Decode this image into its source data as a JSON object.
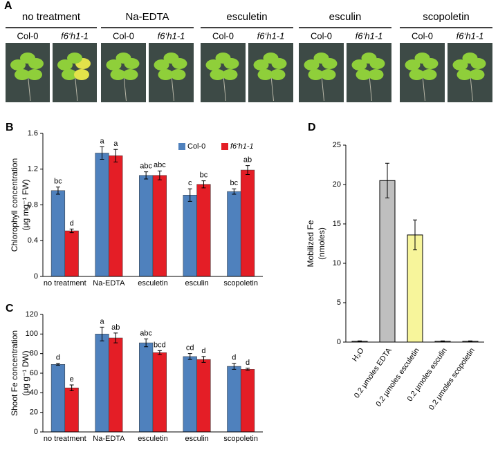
{
  "photo_panel": {
    "label": "A",
    "groups": [
      {
        "treatment": "no treatment",
        "genotypes": [
          "Col-0",
          "f6‘h1-1"
        ]
      },
      {
        "treatment": "Na-EDTA",
        "genotypes": [
          "Col-0",
          "f6‘h1-1"
        ]
      },
      {
        "treatment": "esculetin",
        "genotypes": [
          "Col-0",
          "f6‘h1-1"
        ]
      },
      {
        "treatment": "esculin",
        "genotypes": [
          "Col-0",
          "f6‘h1-1"
        ]
      },
      {
        "treatment": "scopoletin",
        "genotypes": [
          "Col-0",
          "f6‘h1-1"
        ]
      }
    ]
  },
  "chart_data": [
    {
      "type": "bar",
      "panel_label": "B",
      "ylabel": [
        "Chlorophyll concentration",
        "(μg mg⁻¹ FW)"
      ],
      "categories": [
        "no treatment",
        "Na-EDTA",
        "esculetin",
        "esculin",
        "scopoletin"
      ],
      "series": [
        {
          "name": "Col-0",
          "color": "#4f81bd",
          "italic": false,
          "values": [
            0.96,
            1.38,
            1.13,
            0.91,
            0.95
          ],
          "errors": [
            0.04,
            0.07,
            0.04,
            0.07,
            0.03
          ],
          "letters": [
            "bc",
            "a",
            "abc",
            "c",
            "bc"
          ]
        },
        {
          "name": "f6‘h1-1",
          "color": "#e41e26",
          "italic": true,
          "values": [
            0.51,
            1.35,
            1.13,
            1.03,
            1.19
          ],
          "errors": [
            0.02,
            0.07,
            0.05,
            0.04,
            0.05
          ],
          "letters": [
            "d",
            "a",
            "abc",
            "bc",
            "ab"
          ]
        }
      ],
      "ylim": [
        0,
        1.6
      ],
      "yticks": [
        0,
        0.4,
        0.8,
        1.2,
        1.6
      ],
      "grid": false,
      "legend": "top-right"
    },
    {
      "type": "bar",
      "panel_label": "C",
      "ylabel": [
        "Shoot Fe concentration",
        "(μg g⁻¹ DW)"
      ],
      "categories": [
        "no treatment",
        "Na-EDTA",
        "esculetin",
        "esculin",
        "scopoletin"
      ],
      "series": [
        {
          "color": "#4f81bd",
          "values": [
            69,
            100,
            91,
            77,
            67
          ],
          "errors": [
            1,
            7,
            4,
            3,
            3
          ],
          "letters": [
            "d",
            "a",
            "abc",
            "cd",
            "d"
          ]
        },
        {
          "color": "#e41e26",
          "values": [
            45,
            96,
            81,
            74,
            64
          ],
          "errors": [
            3,
            5,
            2,
            3,
            1
          ],
          "letters": [
            "e",
            "ab",
            "bcd",
            "d",
            "d"
          ]
        }
      ],
      "ylim": [
        0,
        120
      ],
      "yticks": [
        0,
        20,
        40,
        60,
        80,
        100,
        120
      ],
      "grid": false
    },
    {
      "type": "bar",
      "panel_label": "D",
      "ylabel": [
        "Mobilized Fe",
        "(nmoles)"
      ],
      "categories": [
        "H₂O",
        "0.2 µmoles EDTA",
        "0.2 µmoles esculetin",
        "0.2 µmoles esculin",
        "0.2 µmoles scopoletin"
      ],
      "values": [
        0.1,
        20.5,
        13.6,
        0.1,
        0.1
      ],
      "errors": [
        0.05,
        2.2,
        1.9,
        0.05,
        0.05
      ],
      "colors": [
        "#ffffff",
        "#bfbfbf",
        "#f7f59b",
        "#ffffff",
        "#ffffff"
      ],
      "ylim": [
        0,
        25
      ],
      "yticks": [
        0,
        5,
        10,
        15,
        20,
        25
      ],
      "grid": false,
      "rotate_labels": true
    }
  ]
}
